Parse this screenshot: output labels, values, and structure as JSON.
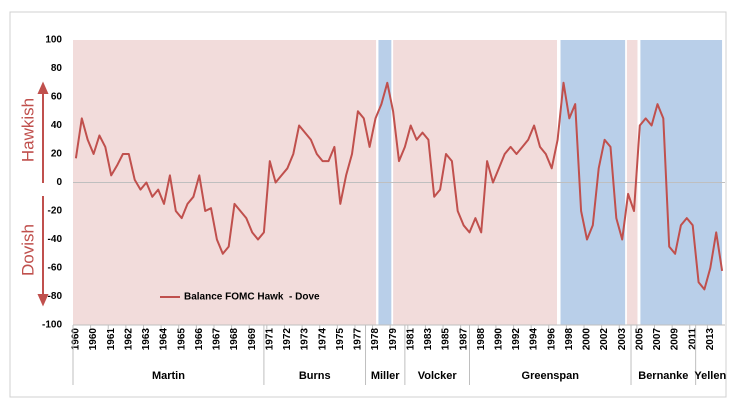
{
  "chart_data": {
    "type": "line",
    "y_label_top": "Hawkish",
    "y_label_bottom": "Dovish",
    "categories": [
      "1960",
      null,
      null,
      "1960",
      null,
      null,
      "1961",
      null,
      null,
      "1962",
      null,
      null,
      "1963",
      null,
      null,
      "1964",
      null,
      null,
      "1965",
      null,
      null,
      "1966",
      null,
      null,
      "1967",
      null,
      null,
      "1968",
      null,
      null,
      "1969",
      null,
      null,
      "1971",
      null,
      null,
      "1972",
      null,
      null,
      "1973",
      null,
      null,
      "1974",
      null,
      null,
      "1975",
      null,
      null,
      "1977",
      null,
      null,
      "1978",
      null,
      null,
      "1979",
      null,
      null,
      "1981",
      null,
      null,
      "1983",
      null,
      null,
      "1985",
      null,
      null,
      "1987",
      null,
      null,
      "1988",
      null,
      null,
      "1990",
      null,
      null,
      "1992",
      null,
      null,
      "1994",
      null,
      null,
      "1996",
      null,
      null,
      "1998",
      null,
      null,
      "2000",
      null,
      null,
      "2002",
      null,
      null,
      "2003",
      null,
      null,
      "2005",
      null,
      null,
      "2007",
      null,
      null,
      "2009",
      null,
      null,
      "2011",
      null,
      null,
      "2013",
      null,
      null
    ],
    "series": [
      {
        "name": "Balance FOMC Hawk  - Dove",
        "color": "#c0504d",
        "values": [
          17,
          45,
          30,
          20,
          33,
          25,
          5,
          12,
          20,
          20,
          2,
          -5,
          0,
          -10,
          -5,
          -15,
          5,
          -20,
          -25,
          -15,
          -10,
          5,
          -20,
          -18,
          -40,
          -50,
          -45,
          -15,
          -20,
          -25,
          -35,
          -40,
          -35,
          15,
          0,
          5,
          10,
          20,
          40,
          35,
          30,
          20,
          15,
          15,
          25,
          -15,
          5,
          20,
          50,
          45,
          25,
          45,
          55,
          70,
          50,
          15,
          25,
          40,
          30,
          35,
          30,
          -10,
          -5,
          20,
          15,
          -20,
          -30,
          -35,
          -25,
          -35,
          15,
          0,
          10,
          20,
          25,
          20,
          25,
          30,
          40,
          25,
          20,
          10,
          30,
          70,
          45,
          55,
          -20,
          -40,
          -30,
          10,
          30,
          25,
          -25,
          -40,
          -8,
          -20,
          40,
          45,
          40,
          55,
          45,
          -45,
          -50,
          -30,
          -25,
          -30,
          -70,
          -75,
          -60,
          -35,
          -62
        ]
      }
    ],
    "regions": [
      {
        "start": 0,
        "end": 51.6,
        "color": "#f2dcdb"
      },
      {
        "start": 52,
        "end": 54.2,
        "color": "#b9cfe9"
      },
      {
        "start": 54.5,
        "end": 82.4,
        "color": "#f2dcdb"
      },
      {
        "start": 83,
        "end": 94,
        "color": "#b9cfe9"
      },
      {
        "start": 94.3,
        "end": 96.1,
        "color": "#f2dcdb"
      },
      {
        "start": 96.6,
        "end": 110.5,
        "color": "#b9cfe9"
      }
    ],
    "groups": [
      {
        "label": "Martin",
        "start": 0,
        "end": 32.5
      },
      {
        "label": "Burns",
        "start": 32.5,
        "end": 49.8
      },
      {
        "label": "Miller",
        "start": 49.8,
        "end": 56.5
      },
      {
        "label": "Volcker",
        "start": 56.5,
        "end": 67.5
      },
      {
        "label": "Greenspan",
        "start": 67.5,
        "end": 95
      },
      {
        "label": "Bernanke",
        "start": 95,
        "end": 106
      },
      {
        "label": "Yellen",
        "start": 106,
        "end": 111
      }
    ],
    "ylim": [
      -100,
      100
    ],
    "yticks": [
      -100,
      -80,
      -60,
      -40,
      -20,
      0,
      20,
      40,
      60,
      80,
      100
    ],
    "legend": "lower-left"
  }
}
